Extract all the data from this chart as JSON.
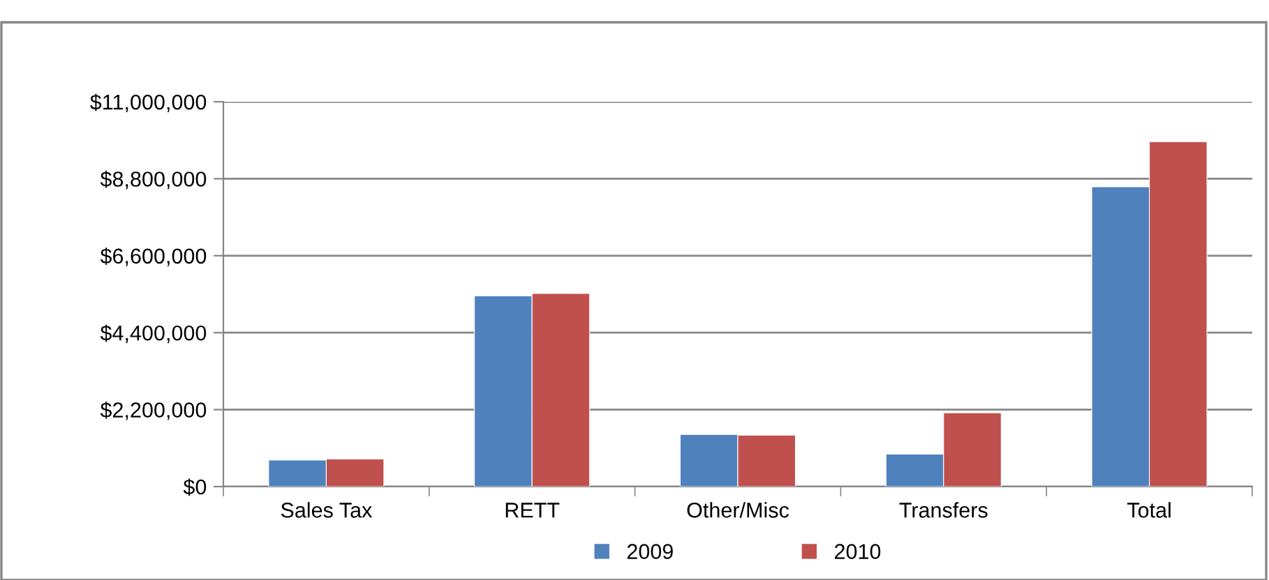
{
  "chart_data": {
    "type": "bar",
    "categories": [
      "Sales Tax",
      "RETT",
      "Other/Misc",
      "Transfers",
      "Total"
    ],
    "series": [
      {
        "name": "2009",
        "color": "#4f81bd",
        "values": [
          760000,
          5450000,
          1490000,
          930000,
          8570000
        ]
      },
      {
        "name": "2010",
        "color": "#c0504d",
        "values": [
          790000,
          5520000,
          1470000,
          2110000,
          9860000
        ]
      }
    ],
    "ylim": [
      0,
      11000000
    ],
    "yticks": [
      {
        "value": 0,
        "label": "$0"
      },
      {
        "value": 2200000,
        "label": "$2,200,000"
      },
      {
        "value": 4400000,
        "label": "$4,400,000"
      },
      {
        "value": 6600000,
        "label": "$6,600,000"
      },
      {
        "value": 8800000,
        "label": "$8,800,000"
      },
      {
        "value": 11000000,
        "label": "$11,000,000"
      }
    ],
    "grid": "y",
    "legend": "bottom"
  }
}
